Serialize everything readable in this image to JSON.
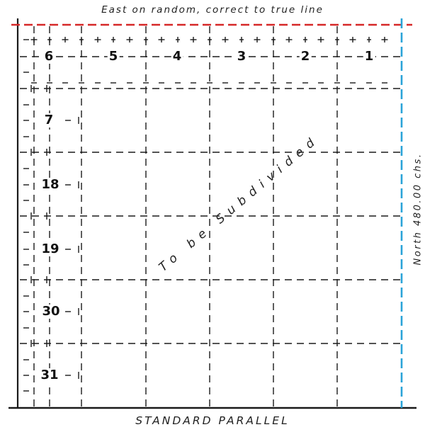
{
  "title": "East on random, correct to true line",
  "bottom_label": "STANDARD PARALLEL",
  "side_label": "North 480.00 chs.",
  "diagonal_label": "To be Subdivided",
  "sections": {
    "s1": "1",
    "s2": "2",
    "s3": "3",
    "s4": "4",
    "s5": "5",
    "s6": "6",
    "s7": "7",
    "s18": "18",
    "s19": "19",
    "s30": "30",
    "s31": "31"
  },
  "colors": {
    "line": "#1a1a1a",
    "east_line": "#d62828",
    "north_line": "#2aa3d8"
  }
}
